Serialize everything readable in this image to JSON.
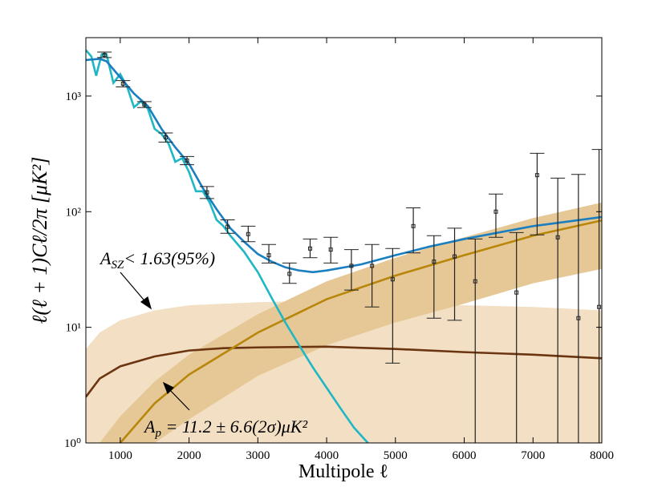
{
  "chart_data": {
    "type": "line",
    "xlabel": "Multipole ℓ",
    "ylabel": "ℓ(ℓ + 1)Cℓ/2π [μK²]",
    "xlim": [
      500,
      8000
    ],
    "ylim": [
      1,
      3200
    ],
    "log_y": true,
    "xticks": [
      1000,
      2000,
      3000,
      4000,
      5000,
      6000,
      7000,
      8000
    ],
    "yticks": [
      {
        "value": 1,
        "label": "10⁰"
      },
      {
        "value": 10,
        "label": "10¹"
      },
      {
        "value": 100,
        "label": "10²"
      },
      {
        "value": 1000,
        "label": "10³"
      }
    ],
    "bands": [
      {
        "color": "#f2dfc4",
        "x": [
          500,
          700,
          1000,
          1500,
          2000,
          3000,
          4000,
          5000,
          6000,
          7000,
          8000
        ],
        "upper": [
          6.5,
          9,
          11.5,
          14,
          15.5,
          16.5,
          17,
          16.5,
          15.5,
          15,
          14
        ]
      },
      {
        "color": "#e6c896",
        "x": [
          700,
          1000,
          1500,
          2000,
          3000,
          4000,
          5000,
          6000,
          7000,
          8000
        ],
        "upper": [
          1.0,
          1.7,
          3.4,
          5.8,
          13,
          25,
          40,
          60,
          88,
          120
        ],
        "lower": [
          0.3,
          0.5,
          1.0,
          1.6,
          3.8,
          7,
          11,
          16,
          24,
          32
        ]
      }
    ],
    "series": [
      {
        "color": "#6b3510",
        "x": [
          500,
          700,
          1000,
          1500,
          2000,
          2500,
          3000,
          4000,
          5000,
          6000,
          7000,
          8000
        ],
        "values": [
          2.5,
          3.6,
          4.6,
          5.6,
          6.3,
          6.6,
          6.7,
          6.8,
          6.5,
          6.1,
          5.8,
          5.4
        ]
      },
      {
        "color": "#b8860b",
        "x": [
          1000,
          1500,
          2000,
          3000,
          4000,
          5000,
          6000,
          7000,
          8000
        ],
        "values": [
          1,
          2.2,
          3.9,
          9,
          17.5,
          28,
          42,
          62,
          84
        ]
      },
      {
        "color": "#1fb7c4",
        "x": [
          500,
          580,
          650,
          730,
          800,
          900,
          1000,
          1100,
          1200,
          1300,
          1400,
          1500,
          1600,
          1700,
          1800,
          1900,
          2000,
          2100,
          2200,
          2300,
          2400,
          2500,
          2600,
          2800,
          3000,
          3200,
          3400,
          3600,
          3800,
          4000,
          4200,
          4400,
          4600
        ],
        "values": [
          2500,
          2200,
          1500,
          2300,
          2300,
          1300,
          1550,
          1200,
          800,
          900,
          780,
          520,
          470,
          390,
          270,
          290,
          220,
          150,
          150,
          120,
          85,
          75,
          62,
          45,
          30,
          18,
          11,
          7,
          4.5,
          3,
          2,
          1.35,
          1.0
        ]
      },
      {
        "color": "#1a7fc0",
        "x": [
          500,
          700,
          800,
          1000,
          1200,
          1400,
          1600,
          1800,
          2000,
          2200,
          2400,
          2600,
          2800,
          3000,
          3200,
          3400,
          3600,
          3800,
          4000,
          4500,
          5000,
          5500,
          6000,
          6500,
          7000,
          7500,
          8000
        ],
        "values": [
          2050,
          2100,
          2000,
          1450,
          1050,
          820,
          520,
          360,
          260,
          160,
          105,
          72,
          55,
          43,
          37,
          33,
          31,
          30,
          31,
          35,
          42,
          50,
          58,
          66,
          75,
          82,
          90
        ]
      }
    ],
    "points": {
      "color": "#222",
      "x": [
        770,
        1040,
        1350,
        1660,
        1970,
        2260,
        2560,
        2860,
        3160,
        3460,
        3760,
        4060,
        4360,
        4660,
        4960,
        5260,
        5560,
        5860,
        6160,
        6460,
        6760,
        7060,
        7360,
        7660,
        7960
      ],
      "values": [
        2270,
        1280,
        845,
        440,
        277,
        147,
        74,
        64,
        42,
        29,
        48,
        47,
        34,
        34,
        26,
        75,
        37,
        41,
        25,
        100,
        20,
        207,
        60,
        12,
        15
      ],
      "lower": [
        2150,
        1200,
        795,
        400,
        255,
        130,
        65,
        55,
        36,
        24,
        40,
        36,
        21,
        15,
        4.9,
        44,
        12,
        11.5,
        0.5,
        60,
        0.5,
        63,
        0.5,
        0.5,
        0.5
      ],
      "upper": [
        2400,
        1360,
        895,
        480,
        300,
        165,
        85,
        75,
        52,
        36,
        58,
        60,
        47,
        52,
        48,
        108,
        62,
        72,
        58,
        142,
        66,
        320,
        195,
        210,
        345
      ]
    },
    "annotations": [
      [
        "A",
        "SZ",
        "< 1.63(95%)"
      ],
      [
        "A",
        "p",
        " = 11.2 ± 6.6(2σ)μK²"
      ]
    ]
  }
}
